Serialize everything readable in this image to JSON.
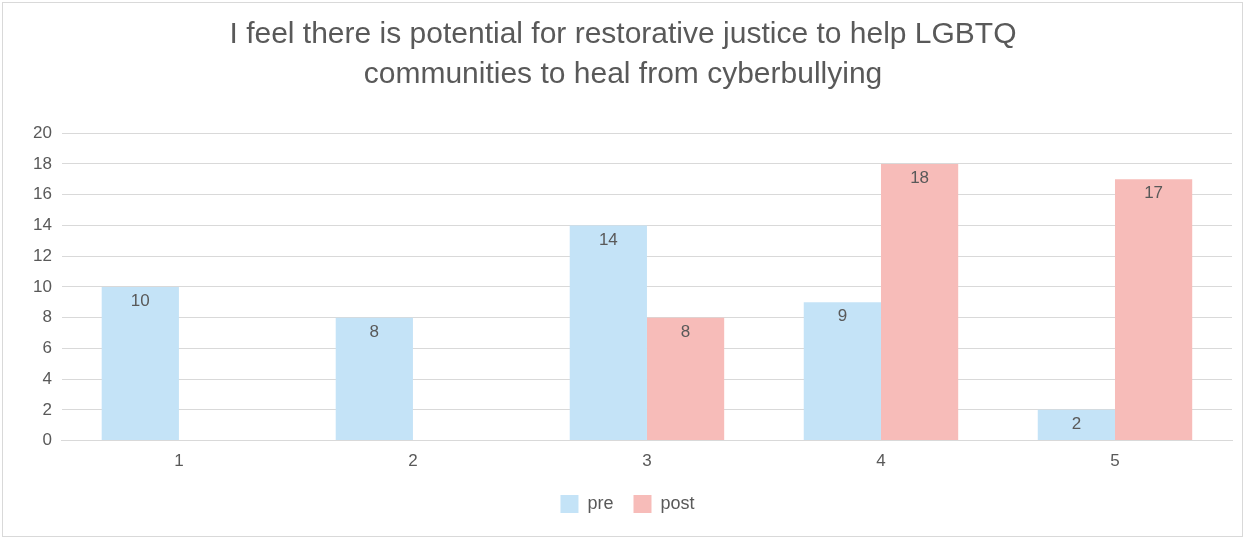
{
  "chart_data": {
    "type": "bar",
    "title": "I feel there is potential for restorative justice to help LGBTQ communities to heal from cyberbullying",
    "categories": [
      "1",
      "2",
      "3",
      "4",
      "5"
    ],
    "series": [
      {
        "name": "pre",
        "color": "#c4e3f7",
        "values": [
          10,
          8,
          14,
          9,
          2
        ],
        "value_labels": [
          "10",
          "8",
          "14",
          "9",
          "2"
        ]
      },
      {
        "name": "post",
        "color": "#f7bcb9",
        "values": [
          0,
          0,
          8,
          18,
          17
        ],
        "value_labels": [
          null,
          null,
          "8",
          "18",
          "17"
        ]
      }
    ],
    "ylim": [
      0,
      20
    ],
    "yticks": [
      0,
      2,
      4,
      6,
      8,
      10,
      12,
      14,
      16,
      18,
      20
    ],
    "grid": "y",
    "legend": "bottom"
  }
}
